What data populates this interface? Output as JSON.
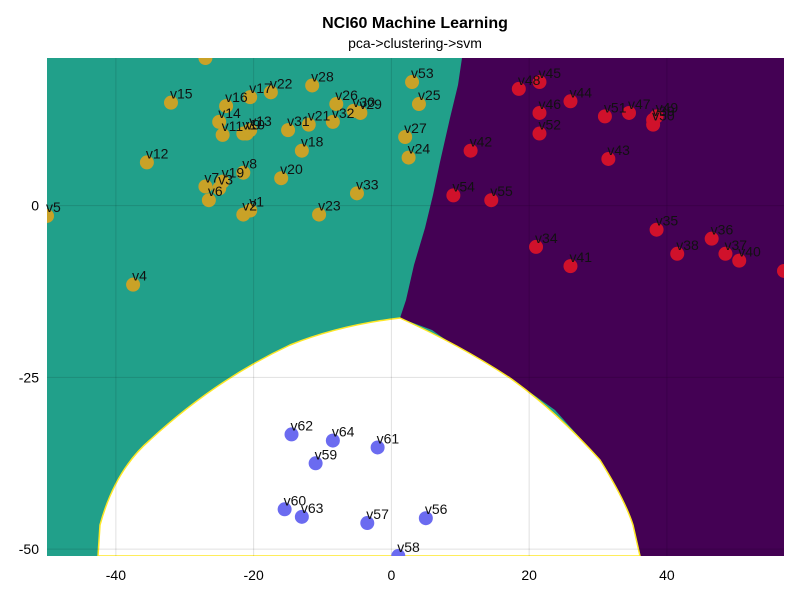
{
  "chart_data": {
    "type": "scatter",
    "title": "NCI60 Machine Learning",
    "subtitle": "pca->clustering->svm",
    "xlabel": "",
    "ylabel": "",
    "xlim": [
      -50,
      57
    ],
    "ylim": [
      -51,
      21.5
    ],
    "xticks": [
      -40,
      -20,
      0,
      20,
      40
    ],
    "yticks": [
      0,
      -25,
      -50
    ],
    "grid": true,
    "colors": {
      "region_teal": "#21a08a",
      "region_purple": "#440154",
      "region_white": "#ffffff",
      "boundary": "#fde725",
      "cluster_yellow": "#c9a227",
      "cluster_red": "#d0112b",
      "cluster_blue": "#6b6bf0"
    },
    "series": [
      {
        "color": "#c9a227",
        "points": [
          {
            "label": "v1",
            "x": -20.5,
            "y": -0.7
          },
          {
            "label": "v2",
            "x": -21.5,
            "y": -1.3
          },
          {
            "label": "v3",
            "x": -25.0,
            "y": 2.5
          },
          {
            "label": "v4",
            "x": -37.5,
            "y": -11.5
          },
          {
            "label": "v5",
            "x": -50.0,
            "y": -1.5
          },
          {
            "label": "v6",
            "x": -26.5,
            "y": 0.8
          },
          {
            "label": "v7",
            "x": -27.0,
            "y": 2.8
          },
          {
            "label": "v8",
            "x": -21.5,
            "y": 4.8
          },
          {
            "label": "v9",
            "x": -21.0,
            "y": 10.5
          },
          {
            "label": "v10",
            "x": -21.5,
            "y": 10.5
          },
          {
            "label": "v11",
            "x": -24.5,
            "y": 10.3
          },
          {
            "label": "v12",
            "x": -35.5,
            "y": 6.3
          },
          {
            "label": "v13",
            "x": -20.5,
            "y": 11.0
          },
          {
            "label": "v14",
            "x": -25.0,
            "y": 12.2
          },
          {
            "label": "v15",
            "x": -32.0,
            "y": 15.0
          },
          {
            "label": "v16",
            "x": -24.0,
            "y": 14.5
          },
          {
            "label": "v17",
            "x": -20.5,
            "y": 15.8
          },
          {
            "label": "v18",
            "x": -13.0,
            "y": 8.0
          },
          {
            "label": "v19",
            "x": -24.5,
            "y": 3.5
          },
          {
            "label": "v20",
            "x": -16.0,
            "y": 4.0
          },
          {
            "label": "v21",
            "x": -12.0,
            "y": 11.8
          },
          {
            "label": "v22",
            "x": -17.5,
            "y": 16.5
          },
          {
            "label": "v23",
            "x": -10.5,
            "y": -1.3
          },
          {
            "label": "v24",
            "x": 2.5,
            "y": 7.0
          },
          {
            "label": "v25",
            "x": 4.0,
            "y": 14.8
          },
          {
            "label": "v26",
            "x": -8.0,
            "y": 14.8
          },
          {
            "label": "v27",
            "x": 2.0,
            "y": 10.0
          },
          {
            "label": "v28",
            "x": -11.5,
            "y": 17.5
          },
          {
            "label": "v29",
            "x": -4.5,
            "y": 13.5
          },
          {
            "label": "v30",
            "x": -5.5,
            "y": 13.8
          },
          {
            "label": "v31",
            "x": -15.0,
            "y": 11.0
          },
          {
            "label": "v32",
            "x": -8.5,
            "y": 12.2
          },
          {
            "label": "v33",
            "x": -5.0,
            "y": 1.8
          },
          {
            "label": "v53",
            "x": 3.0,
            "y": 18.0
          },
          {
            "label": "",
            "x": -27.0,
            "y": 21.5
          }
        ]
      },
      {
        "color": "#d0112b",
        "points": [
          {
            "label": "v34",
            "x": 21.0,
            "y": -6.0
          },
          {
            "label": "v35",
            "x": 38.5,
            "y": -3.5
          },
          {
            "label": "v36",
            "x": 46.5,
            "y": -4.8
          },
          {
            "label": "v37",
            "x": 48.5,
            "y": -7.0
          },
          {
            "label": "v38",
            "x": 41.5,
            "y": -7.0
          },
          {
            "label": "v39",
            "x": 38.0,
            "y": 12.5
          },
          {
            "label": "v40",
            "x": 50.5,
            "y": -8.0
          },
          {
            "label": "v41",
            "x": 26.0,
            "y": -8.8
          },
          {
            "label": "v42",
            "x": 11.5,
            "y": 8.0
          },
          {
            "label": "v43",
            "x": 31.5,
            "y": 6.8
          },
          {
            "label": "v44",
            "x": 26.0,
            "y": 15.2
          },
          {
            "label": "v45",
            "x": 21.5,
            "y": 18.0
          },
          {
            "label": "v46",
            "x": 21.5,
            "y": 13.5
          },
          {
            "label": "v47",
            "x": 34.5,
            "y": 13.5
          },
          {
            "label": "v48",
            "x": 18.5,
            "y": 17.0
          },
          {
            "label": "v49",
            "x": 38.5,
            "y": 13.0
          },
          {
            "label": "v50",
            "x": 38.0,
            "y": 11.8
          },
          {
            "label": "v51",
            "x": 31.0,
            "y": 13.0
          },
          {
            "label": "v52",
            "x": 21.5,
            "y": 10.5
          },
          {
            "label": "v54",
            "x": 9.0,
            "y": 1.5
          },
          {
            "label": "v55",
            "x": 14.5,
            "y": 0.8
          },
          {
            "label": "",
            "x": 57.0,
            "y": -9.5
          }
        ]
      },
      {
        "color": "#6b6bf0",
        "points": [
          {
            "label": "v56",
            "x": 5.0,
            "y": -45.5
          },
          {
            "label": "v57",
            "x": -3.5,
            "y": -46.2
          },
          {
            "label": "v58",
            "x": 1.0,
            "y": -51.0
          },
          {
            "label": "v59",
            "x": -11.0,
            "y": -37.5
          },
          {
            "label": "v60",
            "x": -15.5,
            "y": -44.2
          },
          {
            "label": "v61",
            "x": -2.0,
            "y": -35.2
          },
          {
            "label": "v62",
            "x": -14.5,
            "y": -33.3
          },
          {
            "label": "v63",
            "x": -13.0,
            "y": -45.3
          },
          {
            "label": "v64",
            "x": -8.5,
            "y": -34.2
          }
        ]
      }
    ]
  }
}
